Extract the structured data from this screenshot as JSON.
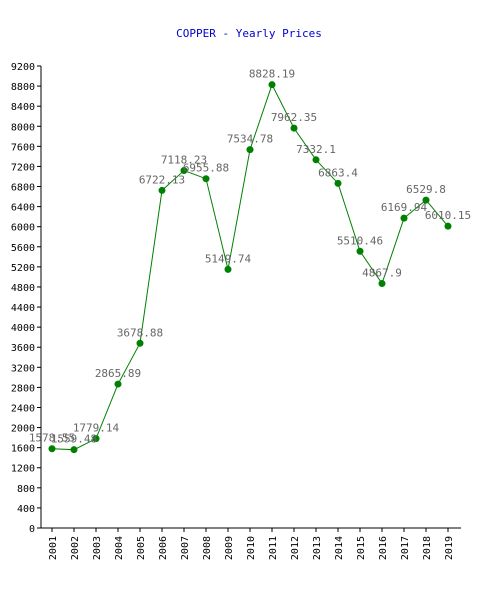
{
  "chart_data": {
    "type": "line",
    "title": "COPPER - Yearly Prices",
    "xlabel": "",
    "ylabel": "",
    "categories": [
      "2001",
      "2002",
      "2003",
      "2004",
      "2005",
      "2006",
      "2007",
      "2008",
      "2009",
      "2010",
      "2011",
      "2012",
      "2013",
      "2014",
      "2015",
      "2016",
      "2017",
      "2018",
      "2019"
    ],
    "series": [
      {
        "values": [
          1578.55,
          1559.48,
          1779.14,
          2865.89,
          3678.88,
          6722.13,
          7118.23,
          6955.88,
          5149.74,
          7534.78,
          8828.19,
          7962.35,
          7332.1,
          6863.4,
          5510.46,
          4867.9,
          6169.94,
          6529.8,
          6010.15
        ],
        "labels": [
          "1578.55",
          "1559.48",
          "1779.14",
          "2865.89",
          "3678.88",
          "6722.13",
          "7118.23",
          "6955.88",
          "5149.74",
          "7534.78",
          "8828.19",
          "7962.35",
          "7332.1",
          "6863.4",
          "5510.46",
          "4867.9",
          "6169.94",
          "6529.8",
          "6010.15"
        ]
      }
    ],
    "ylim": [
      0,
      9200
    ],
    "yticks": [
      "0",
      "400",
      "800",
      "1200",
      "1600",
      "2000",
      "2400",
      "2800",
      "3200",
      "3600",
      "4000",
      "4400",
      "4800",
      "5200",
      "5600",
      "6000",
      "6400",
      "6800",
      "7200",
      "7600",
      "8000",
      "8400",
      "8800",
      "9200"
    ],
    "grid": false,
    "colors": {
      "line": "#008000",
      "marker": "#008000",
      "title": "#0000cc",
      "data_label": "#666666"
    }
  }
}
